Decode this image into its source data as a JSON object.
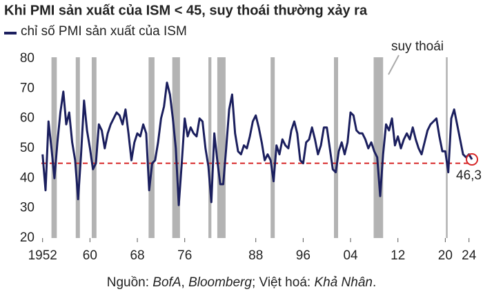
{
  "chart_data": {
    "type": "line",
    "title": "Khi PMI sản xuất của ISM < 45, suy thoái thường xảy ra",
    "series": [
      {
        "name": "chỉ số PMI sản xuất của ISM",
        "color": "#1b1f5e",
        "x": [
          1952,
          1952.5,
          1953,
          1953.5,
          1954,
          1954.5,
          1955,
          1955.5,
          1956,
          1956.5,
          1957,
          1957.5,
          1958,
          1958.5,
          1959,
          1959.5,
          1960,
          1960.5,
          1961,
          1961.5,
          1962,
          1962.5,
          1963,
          1963.5,
          1964,
          1964.5,
          1965,
          1965.5,
          1966,
          1966.5,
          1967,
          1967.5,
          1968,
          1968.5,
          1969,
          1969.5,
          1970,
          1970.5,
          1971,
          1971.5,
          1972,
          1972.5,
          1973,
          1973.5,
          1974,
          1974.5,
          1975,
          1975.5,
          1976,
          1976.5,
          1977,
          1977.5,
          1978,
          1978.5,
          1979,
          1979.5,
          1980,
          1980.5,
          1981,
          1981.5,
          1982,
          1982.5,
          1983,
          1983.5,
          1984,
          1984.5,
          1985,
          1985.5,
          1986,
          1986.5,
          1987,
          1987.5,
          1988,
          1988.5,
          1989,
          1989.5,
          1990,
          1990.5,
          1991,
          1991.5,
          1992,
          1992.5,
          1993,
          1993.5,
          1994,
          1994.5,
          1995,
          1995.5,
          1996,
          1996.5,
          1997,
          1997.5,
          1998,
          1998.5,
          1999,
          1999.5,
          2000,
          2000.5,
          2001,
          2001.5,
          2002,
          2002.5,
          2003,
          2003.5,
          2004,
          2004.5,
          2005,
          2005.5,
          2006,
          2006.5,
          2007,
          2007.5,
          2008,
          2008.5,
          2009,
          2009.5,
          2010,
          2010.5,
          2011,
          2011.5,
          2012,
          2012.5,
          2013,
          2013.5,
          2014,
          2014.5,
          2015,
          2015.5,
          2016,
          2016.5,
          2017,
          2017.5,
          2018,
          2018.5,
          2019,
          2019.5,
          2020,
          2020.5,
          2021,
          2021.5,
          2022,
          2022.5,
          2023,
          2023.5,
          2024,
          2024.5
        ],
        "values": [
          48,
          36,
          59,
          50,
          40,
          52,
          62,
          69,
          58,
          62,
          52,
          46,
          33,
          48,
          66,
          56,
          50,
          43,
          45,
          58,
          56,
          50,
          55,
          58,
          60,
          62,
          61,
          58,
          63,
          55,
          46,
          52,
          55,
          54,
          58,
          55,
          36,
          45,
          46,
          52,
          60,
          64,
          72,
          68,
          60,
          50,
          31,
          45,
          60,
          54,
          57,
          55,
          54,
          60,
          59,
          50,
          44,
          32,
          55,
          46,
          38,
          38,
          50,
          63,
          68,
          55,
          49,
          48,
          51,
          50,
          54,
          59,
          61,
          57,
          52,
          46,
          48,
          46,
          39,
          51,
          48,
          53,
          51,
          50,
          56,
          59,
          55,
          46,
          45,
          52,
          53,
          57,
          53,
          48,
          51,
          57,
          57,
          50,
          43,
          42,
          49,
          52,
          48,
          52,
          62,
          61,
          56,
          55,
          55,
          53,
          50,
          52,
          49,
          47,
          34,
          48,
          58,
          56,
          60,
          51,
          54,
          50,
          53,
          55,
          53,
          57,
          53,
          50,
          48,
          52,
          56,
          58,
          59,
          60,
          54,
          49,
          49,
          42,
          60,
          63,
          58,
          53,
          48,
          47,
          48,
          46.3
        ]
      }
    ],
    "recessions": [
      [
        1953.5,
        1954.4
      ],
      [
        1957.6,
        1958.3
      ],
      [
        1960.3,
        1961.1
      ],
      [
        1969.9,
        1970.9
      ],
      [
        1973.9,
        1975.2
      ],
      [
        1980.0,
        1980.5
      ],
      [
        1981.5,
        1982.9
      ],
      [
        1990.5,
        1991.2
      ],
      [
        2001.2,
        2001.9
      ],
      [
        2007.9,
        2009.5
      ],
      [
        2020.1,
        2020.4
      ]
    ],
    "recession_label": "suy thoái",
    "threshold": 45,
    "annotation": {
      "label": "46,3",
      "x": 2024.5,
      "y": 46.3
    },
    "xlim": [
      1951.8,
      2025.2
    ],
    "xticks": [
      1952,
      {
        "value": 1960,
        "label": "60"
      },
      {
        "value": 1968,
        "label": "68"
      },
      {
        "value": 1976,
        "label": "76"
      },
      {
        "value": 1988,
        "label": "88"
      },
      {
        "value": 1996,
        "label": "96"
      },
      {
        "value": 2004,
        "label": "04"
      },
      {
        "value": 2012,
        "label": "12"
      },
      {
        "value": 2020,
        "label": "20"
      },
      {
        "value": 2024,
        "label": "24"
      }
    ],
    "ylim": [
      20,
      80
    ],
    "yticks": [
      20,
      30,
      40,
      50,
      60,
      70,
      80
    ],
    "grid": false,
    "source": [
      {
        "text": "Nguồn: "
      },
      {
        "text": "BofA",
        "italic": true
      },
      {
        "text": ", "
      },
      {
        "text": "Bloomberg",
        "italic": true
      },
      {
        "text": "; Việt hoá: "
      },
      {
        "text": "Khả Nhân",
        "italic": true
      },
      {
        "text": "."
      }
    ]
  }
}
